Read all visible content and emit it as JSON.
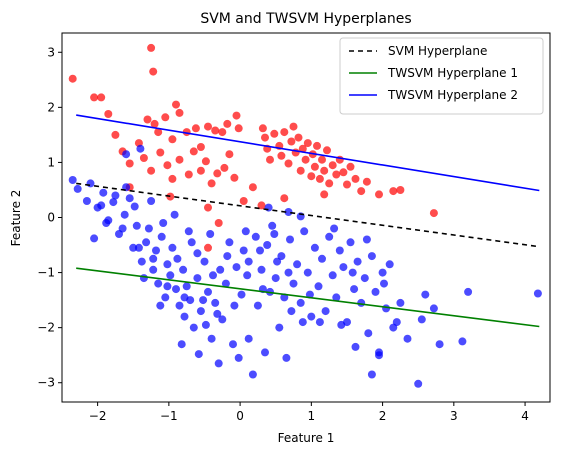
{
  "chart_data": {
    "type": "scatter",
    "title": "SVM and TWSVM Hyperplanes",
    "xlabel": "Feature 1",
    "ylabel": "Feature 2",
    "xlim": [
      -2.5,
      4.35
    ],
    "ylim": [
      -3.35,
      3.35
    ],
    "xticks": [
      -2,
      -1,
      0,
      1,
      2,
      3,
      4
    ],
    "yticks": [
      -3,
      -2,
      -1,
      0,
      1,
      2,
      3
    ],
    "grid": false,
    "legend_position": "top-right",
    "series": [
      {
        "kind": "points",
        "color": "#ff0000",
        "opacity": 0.7,
        "points": [
          [
            -2.35,
            2.52
          ],
          [
            -2.05,
            2.18
          ],
          [
            -1.95,
            2.18
          ],
          [
            -1.85,
            1.88
          ],
          [
            -1.75,
            1.5
          ],
          [
            -1.25,
            3.08
          ],
          [
            -1.22,
            2.65
          ],
          [
            -1.3,
            1.78
          ],
          [
            -1.2,
            1.7
          ],
          [
            -1.15,
            1.55
          ],
          [
            -1.05,
            1.82
          ],
          [
            -0.95,
            1.42
          ],
          [
            -0.9,
            2.05
          ],
          [
            -0.85,
            1.9
          ],
          [
            -0.75,
            1.55
          ],
          [
            -0.62,
            1.62
          ],
          [
            -0.55,
            1.28
          ],
          [
            -0.45,
            1.65
          ],
          [
            -0.35,
            1.58
          ],
          [
            -0.25,
            1.55
          ],
          [
            -0.18,
            1.7
          ],
          [
            -0.05,
            1.85
          ],
          [
            -0.02,
            1.62
          ],
          [
            -1.65,
            1.2
          ],
          [
            -1.55,
            0.98
          ],
          [
            -1.42,
            1.35
          ],
          [
            -1.35,
            1.08
          ],
          [
            -1.25,
            0.85
          ],
          [
            -1.12,
            1.18
          ],
          [
            -1.02,
            0.95
          ],
          [
            -0.95,
            0.7
          ],
          [
            -0.85,
            1.05
          ],
          [
            -0.72,
            0.78
          ],
          [
            -0.65,
            1.2
          ],
          [
            -0.55,
            0.85
          ],
          [
            -0.48,
            1.02
          ],
          [
            -0.4,
            0.62
          ],
          [
            -0.32,
            0.8
          ],
          [
            -0.22,
            0.9
          ],
          [
            -0.15,
            1.15
          ],
          [
            -0.08,
            0.72
          ],
          [
            -1.55,
            0.55
          ],
          [
            -0.98,
            0.38
          ],
          [
            -0.45,
            0.18
          ],
          [
            -0.3,
            -0.1
          ],
          [
            -0.45,
            -0.55
          ],
          [
            0.05,
            0.3
          ],
          [
            0.18,
            0.55
          ],
          [
            0.32,
            1.62
          ],
          [
            0.35,
            1.45
          ],
          [
            0.38,
            1.25
          ],
          [
            0.42,
            1.05
          ],
          [
            0.48,
            1.52
          ],
          [
            0.55,
            1.3
          ],
          [
            0.58,
            1.12
          ],
          [
            0.62,
            1.55
          ],
          [
            0.68,
            0.98
          ],
          [
            0.72,
            1.38
          ],
          [
            0.75,
            1.65
          ],
          [
            0.78,
            1.18
          ],
          [
            0.82,
            1.45
          ],
          [
            0.85,
            0.85
          ],
          [
            0.88,
            1.25
          ],
          [
            0.92,
            1.05
          ],
          [
            0.95,
            1.35
          ],
          [
            1.0,
            0.75
          ],
          [
            1.02,
            1.15
          ],
          [
            1.05,
            0.92
          ],
          [
            1.08,
            1.3
          ],
          [
            1.12,
            0.7
          ],
          [
            1.15,
            1.05
          ],
          [
            1.18,
            0.85
          ],
          [
            1.22,
            1.22
          ],
          [
            1.25,
            0.62
          ],
          [
            1.3,
            0.95
          ],
          [
            1.35,
            0.78
          ],
          [
            1.4,
            1.05
          ],
          [
            1.45,
            0.82
          ],
          [
            1.5,
            0.6
          ],
          [
            1.55,
            0.92
          ],
          [
            1.62,
            0.7
          ],
          [
            1.7,
            0.48
          ],
          [
            1.78,
            0.65
          ],
          [
            1.95,
            0.42
          ],
          [
            2.15,
            0.48
          ],
          [
            2.25,
            0.5
          ],
          [
            2.72,
            0.08
          ],
          [
            0.3,
            0.22
          ],
          [
            0.62,
            0.35
          ],
          [
            1.18,
            0.42
          ]
        ]
      },
      {
        "kind": "points",
        "color": "#0000ff",
        "opacity": 0.7,
        "points": [
          [
            -2.35,
            0.68
          ],
          [
            -2.28,
            0.52
          ],
          [
            -2.1,
            0.62
          ],
          [
            -2.0,
            0.18
          ],
          [
            -1.92,
            0.45
          ],
          [
            -1.85,
            -0.05
          ],
          [
            -1.78,
            0.28
          ],
          [
            -1.7,
            -0.3
          ],
          [
            -1.62,
            0.05
          ],
          [
            -1.55,
            0.35
          ],
          [
            -2.05,
            -0.38
          ],
          [
            -1.95,
            0.22
          ],
          [
            -1.6,
            1.15
          ],
          [
            -1.4,
            1.25
          ],
          [
            -1.5,
            -0.55
          ],
          [
            -1.45,
            -0.15
          ],
          [
            -1.38,
            -0.8
          ],
          [
            -1.32,
            -0.45
          ],
          [
            -1.28,
            -0.2
          ],
          [
            -1.22,
            -0.95
          ],
          [
            -1.18,
            -0.6
          ],
          [
            -1.15,
            -1.2
          ],
          [
            -1.1,
            -0.35
          ],
          [
            -1.05,
            -1.45
          ],
          [
            -1.02,
            -0.85
          ],
          [
            -0.98,
            -1.05
          ],
          [
            -0.95,
            -0.55
          ],
          [
            -0.9,
            -1.3
          ],
          [
            -0.88,
            -0.75
          ],
          [
            -0.85,
            -1.6
          ],
          [
            -0.8,
            -0.95
          ],
          [
            -0.78,
            -1.8
          ],
          [
            -0.75,
            -1.25
          ],
          [
            -0.7,
            -1.5
          ],
          [
            -0.68,
            -0.45
          ],
          [
            -0.65,
            -2.0
          ],
          [
            -0.6,
            -1.1
          ],
          [
            -0.58,
            -2.48
          ],
          [
            -0.55,
            -1.7
          ],
          [
            -0.5,
            -0.8
          ],
          [
            -0.48,
            -1.95
          ],
          [
            -0.45,
            -1.35
          ],
          [
            -0.4,
            -2.2
          ],
          [
            -0.38,
            -1.05
          ],
          [
            -0.35,
            -1.55
          ],
          [
            -0.3,
            -2.65
          ],
          [
            -0.28,
            -0.95
          ],
          [
            -0.25,
            -1.85
          ],
          [
            -0.2,
            -1.2
          ],
          [
            -0.15,
            -0.45
          ],
          [
            -0.1,
            -2.3
          ],
          [
            -0.05,
            -0.9
          ],
          [
            -0.02,
            -2.55
          ],
          [
            0.02,
            -1.4
          ],
          [
            0.05,
            -0.6
          ],
          [
            0.1,
            -1.05
          ],
          [
            0.12,
            -2.2
          ],
          [
            0.18,
            -2.85
          ],
          [
            0.22,
            -0.35
          ],
          [
            0.25,
            -1.6
          ],
          [
            0.3,
            -0.95
          ],
          [
            0.35,
            -2.45
          ],
          [
            0.38,
            -0.5
          ],
          [
            0.42,
            -1.35
          ],
          [
            0.45,
            -0.15
          ],
          [
            0.5,
            -1.1
          ],
          [
            0.55,
            -2.0
          ],
          [
            0.58,
            -0.7
          ],
          [
            0.62,
            -1.45
          ],
          [
            0.65,
            -2.55
          ],
          [
            0.7,
            -0.4
          ],
          [
            0.75,
            -1.2
          ],
          [
            0.8,
            -0.85
          ],
          [
            0.85,
            -1.55
          ],
          [
            0.9,
            -0.25
          ],
          [
            0.95,
            -1.0
          ],
          [
            1.0,
            -1.8
          ],
          [
            1.05,
            -0.55
          ],
          [
            1.1,
            -1.25
          ],
          [
            1.15,
            -0.75
          ],
          [
            1.2,
            -1.7
          ],
          [
            1.25,
            -0.35
          ],
          [
            1.3,
            -1.05
          ],
          [
            1.35,
            -1.45
          ],
          [
            1.4,
            -0.6
          ],
          [
            1.45,
            -0.9
          ],
          [
            1.5,
            -1.9
          ],
          [
            1.55,
            -0.45
          ],
          [
            1.6,
            -1.3
          ],
          [
            1.65,
            -0.8
          ],
          [
            1.7,
            -1.55
          ],
          [
            1.75,
            -1.1
          ],
          [
            1.8,
            -2.1
          ],
          [
            1.85,
            -0.7
          ],
          [
            1.9,
            -1.35
          ],
          [
            1.95,
            -2.45
          ],
          [
            2.0,
            -1.0
          ],
          [
            2.05,
            -1.65
          ],
          [
            2.1,
            -0.85
          ],
          [
            2.15,
            -2.0
          ],
          [
            2.25,
            -1.55
          ],
          [
            2.5,
            -3.02
          ],
          [
            2.55,
            -1.85
          ],
          [
            2.72,
            -1.65
          ],
          [
            2.8,
            -2.3
          ],
          [
            3.12,
            -2.25
          ],
          [
            3.2,
            -1.35
          ],
          [
            4.18,
            -1.38
          ],
          [
            1.85,
            -2.85
          ],
          [
            1.95,
            -2.5
          ],
          [
            2.35,
            -2.2
          ],
          [
            2.6,
            -1.4
          ],
          [
            -1.6,
            0.55
          ],
          [
            -1.75,
            0.4
          ],
          [
            -1.48,
            0.2
          ],
          [
            -1.25,
            0.3
          ],
          [
            -1.08,
            -0.1
          ],
          [
            -0.92,
            0.05
          ],
          [
            -0.72,
            -0.25
          ],
          [
            -1.35,
            -1.1
          ],
          [
            -1.12,
            -1.6
          ],
          [
            -0.82,
            -2.3
          ],
          [
            -0.6,
            -0.65
          ],
          [
            -0.42,
            -0.3
          ],
          [
            -0.18,
            -0.7
          ],
          [
            0.08,
            -0.25
          ],
          [
            0.28,
            -0.6
          ],
          [
            0.48,
            -0.3
          ],
          [
            0.68,
            -1.0
          ],
          [
            0.88,
            -1.9
          ],
          [
            1.12,
            -1.9
          ],
          [
            1.32,
            -0.2
          ],
          [
            1.58,
            -1.0
          ],
          [
            1.78,
            -0.4
          ],
          [
            2.02,
            -1.2
          ],
          [
            2.2,
            -1.9
          ],
          [
            1.62,
            -2.35
          ],
          [
            1.42,
            -1.95
          ],
          [
            0.98,
            -1.4
          ],
          [
            0.72,
            -1.7
          ],
          [
            0.52,
            -0.8
          ],
          [
            0.32,
            -1.3
          ],
          [
            0.12,
            -0.8
          ],
          [
            -0.08,
            -1.6
          ],
          [
            -0.32,
            -1.75
          ],
          [
            -0.52,
            -1.5
          ],
          [
            -0.78,
            -1.45
          ],
          [
            -1.02,
            -1.25
          ],
          [
            -1.22,
            -0.75
          ],
          [
            -1.42,
            -0.55
          ],
          [
            -1.65,
            -0.2
          ],
          [
            -1.88,
            -0.1
          ],
          [
            -2.15,
            0.3
          ],
          [
            0.4,
            0.18
          ],
          [
            0.68,
            0.1
          ],
          [
            0.85,
            0.02
          ]
        ]
      },
      {
        "kind": "line",
        "name": "SVM Hyperplane",
        "color": "#000000",
        "dash": "5,4",
        "x": [
          -2.3,
          4.2
        ],
        "y": [
          0.62,
          -0.53
        ]
      },
      {
        "kind": "line",
        "name": "TWSVM Hyperplane 1",
        "color": "#008000",
        "dash": "",
        "x": [
          -2.3,
          4.2
        ],
        "y": [
          -0.92,
          -1.98
        ]
      },
      {
        "kind": "line",
        "name": "TWSVM Hyperplane 2",
        "color": "#0000ff",
        "dash": "",
        "x": [
          -2.3,
          4.2
        ],
        "y": [
          1.86,
          0.49
        ]
      }
    ]
  }
}
